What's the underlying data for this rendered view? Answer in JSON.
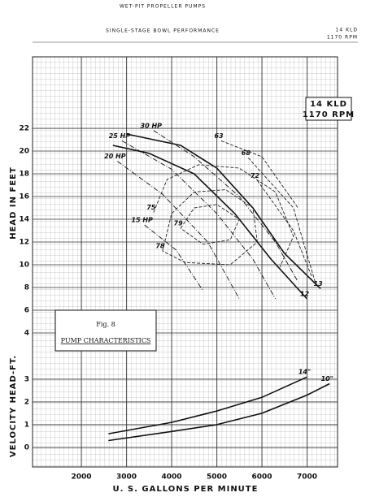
{
  "header": {
    "title": "WET-PIT PROPELLER PUMPS",
    "subtitle": "SINGLE-STAGE BOWL PERFORMANCE",
    "model": "14 KLD",
    "speed": "1170 RPM"
  },
  "chart_data": [
    {
      "type": "line",
      "y_label": "HEAD IN FEET",
      "box": [
        "14 KLD",
        "1170 RPM"
      ],
      "figure": "Fig. 8",
      "caption": "PUMP CHARACTERISTICS",
      "xlim": [
        919,
        7676
      ],
      "ylim": [
        2.57,
        28.29
      ],
      "yticks": [
        4,
        6,
        8,
        10,
        12,
        14,
        16,
        18,
        20,
        22
      ],
      "series": [
        {
          "name": "13",
          "color": "#111111",
          "style": "solid",
          "x": [
            7300,
            6500,
            5800,
            5000,
            4200,
            3000
          ],
          "values": [
            7.9,
            11,
            15,
            18.5,
            20.5,
            21.5
          ]
        },
        {
          "name": "12",
          "color": "#111111",
          "style": "solid",
          "x": [
            7000,
            6200,
            5400,
            4500,
            3500,
            2700
          ],
          "values": [
            7,
            10.5,
            14.5,
            18,
            19.8,
            20.5
          ]
        },
        {
          "name": "30 HP",
          "color": "#111111",
          "style": "dashdot",
          "x": [
            3600,
            4500,
            5500,
            6300,
            6800
          ],
          "values": [
            21.8,
            19.5,
            16,
            12,
            8.5
          ]
        },
        {
          "name": "25 HP",
          "color": "#111111",
          "style": "dashdot",
          "x": [
            2900,
            4000,
            5000,
            5800,
            6300
          ],
          "values": [
            20.9,
            18.4,
            14.5,
            10.5,
            7
          ]
        },
        {
          "name": "20 HP",
          "color": "#111111",
          "style": "dashdot",
          "x": [
            2800,
            3800,
            4800,
            5500
          ],
          "values": [
            19.1,
            16.2,
            12,
            7
          ]
        },
        {
          "name": "15 HP",
          "color": "#111111",
          "style": "dashdot",
          "x": [
            3400,
            4100,
            4700
          ],
          "values": [
            13.5,
            11.3,
            7.7
          ]
        },
        {
          "name": "79",
          "color": "#222222",
          "style": "dashed",
          "x": [
            4200,
            4500,
            5000,
            5500,
            5300,
            4700,
            4200
          ],
          "values": [
            13.2,
            15,
            15.3,
            14,
            12.2,
            11.8,
            13.2
          ]
        },
        {
          "name": "78",
          "color": "#222222",
          "style": "dashed",
          "x": [
            3800,
            4000,
            4500,
            5200,
            5800,
            5900,
            5300,
            4300,
            3800
          ],
          "values": [
            11.2,
            14.5,
            16.4,
            16.6,
            15,
            12,
            10,
            10.2,
            11.2
          ]
        },
        {
          "name": "75",
          "color": "#222222",
          "style": "dashed",
          "x": [
            3600,
            3900,
            4600,
            5500,
            6300,
            6700,
            6400
          ],
          "values": [
            14.6,
            17.5,
            18.8,
            18.5,
            16.4,
            12.5,
            9.8
          ]
        },
        {
          "name": "72",
          "color": "#222222",
          "style": "dashed",
          "x": [
            5900,
            6700,
            7100
          ],
          "values": [
            17.4,
            13,
            9
          ]
        },
        {
          "name": "68",
          "color": "#222222",
          "style": "dashed",
          "x": [
            5700,
            6700,
            7000,
            7200
          ],
          "values": [
            19.4,
            15,
            10.9,
            8.2
          ]
        },
        {
          "name": "63",
          "color": "#222222",
          "style": "dashed",
          "x": [
            5100,
            6000,
            6800
          ],
          "values": [
            20.9,
            19.5,
            15
          ]
        }
      ]
    },
    {
      "type": "line",
      "y_label": "VELOCITY HEAD-FT.",
      "x_label": "U. S. GALLONS PER MINUTE",
      "xlim": [
        919,
        7676
      ],
      "ylim": [
        -0.86,
        4.32
      ],
      "xticks": [
        2000,
        3000,
        4000,
        5000,
        6000,
        7000
      ],
      "yticks": [
        0,
        1,
        2,
        3
      ],
      "series": [
        {
          "name": "14\"",
          "color": "#111111",
          "style": "solid",
          "x": [
            7000,
            6000,
            5000,
            4000,
            2600
          ],
          "values": [
            3.1,
            2.2,
            1.6,
            1.1,
            0.6
          ]
        },
        {
          "name": "10\"",
          "color": "#111111",
          "style": "solid",
          "x": [
            7500,
            7000,
            6000,
            5000,
            4000,
            2600
          ],
          "values": [
            2.8,
            2.3,
            1.5,
            1.0,
            0.7,
            0.3
          ]
        }
      ]
    }
  ]
}
